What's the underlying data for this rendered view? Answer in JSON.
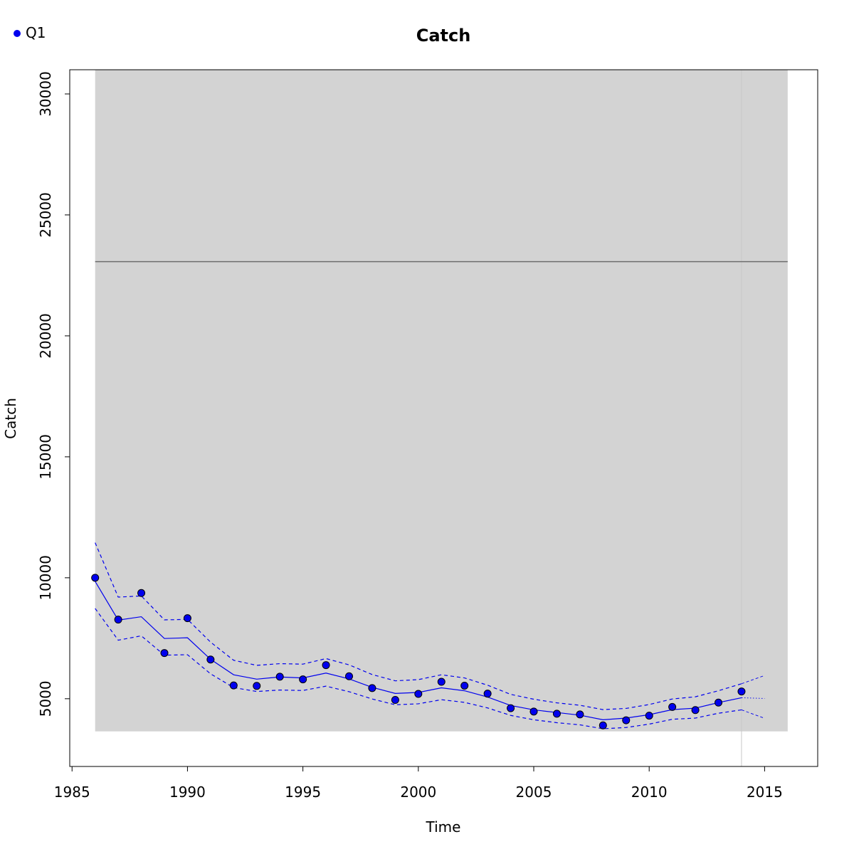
{
  "chart_data": {
    "type": "line",
    "title": "Catch",
    "xlabel": "Time",
    "ylabel": "Catch",
    "xlim": [
      1984.9,
      2017.3
    ],
    "ylim": [
      2200,
      31000
    ],
    "x_ticks": [
      1985,
      1990,
      1995,
      2000,
      2005,
      2010,
      2015
    ],
    "y_ticks": [
      5000,
      10000,
      15000,
      20000,
      25000,
      30000
    ],
    "shaded_region": {
      "x": [
        1986,
        2016
      ],
      "y": [
        3650,
        31000
      ],
      "color": "#d3d3d3"
    },
    "reference_line": {
      "y": 23070,
      "x": [
        1986,
        2016
      ],
      "color": "#6e6e6e"
    },
    "vertical_line": {
      "x": 2014,
      "color": "#c8c8c8"
    },
    "legend": {
      "position": "top-left",
      "entries": [
        {
          "label": "Q1",
          "color": "#0000ee"
        }
      ]
    },
    "colors": {
      "series": "#0000ee",
      "point_fill": "#0000ee",
      "point_stroke": "#000000"
    },
    "series": [
      {
        "name": "Q1",
        "style": "points",
        "x": [
          1986,
          1987,
          1988,
          1989,
          1990,
          1991,
          1992,
          1993,
          1994,
          1995,
          1996,
          1997,
          1998,
          1999,
          2000,
          2001,
          2002,
          2003,
          2004,
          2005,
          2006,
          2007,
          2008,
          2009,
          2010,
          2011,
          2012,
          2013,
          2014
        ],
        "y": [
          10000,
          8270,
          9370,
          6890,
          8330,
          6620,
          5550,
          5530,
          5910,
          5800,
          6390,
          5930,
          5440,
          4950,
          5200,
          5700,
          5540,
          5210,
          4610,
          4470,
          4380,
          4350,
          3900,
          4110,
          4300,
          4660,
          4530,
          4840,
          5300
        ]
      },
      {
        "style": "line",
        "x": [
          1986,
          1987,
          1988,
          1989,
          1990,
          1991,
          1992,
          1993,
          1994,
          1995,
          1996,
          1997,
          1998,
          1999,
          2000,
          2001,
          2002,
          2003,
          2004,
          2005,
          2006,
          2007,
          2008,
          2009,
          2010,
          2011,
          2012,
          2013,
          2014
        ],
        "y": [
          9850,
          8250,
          8390,
          7490,
          7520,
          6630,
          5990,
          5810,
          5900,
          5860,
          6060,
          5820,
          5470,
          5220,
          5260,
          5450,
          5330,
          5070,
          4720,
          4540,
          4430,
          4320,
          4130,
          4200,
          4340,
          4550,
          4610,
          4840,
          5040
        ]
      },
      {
        "style": "dashed",
        "x": [
          1986,
          1987,
          1988,
          1989,
          1990,
          1991,
          1992,
          1993,
          1994,
          1995,
          1996,
          1997,
          1998,
          1999,
          2000,
          2001,
          2002,
          2003,
          2004,
          2005,
          2006,
          2007,
          2008,
          2009,
          2010,
          2011,
          2012,
          2013,
          2014
        ],
        "y": [
          11450,
          9200,
          9250,
          8260,
          8280,
          7340,
          6590,
          6380,
          6450,
          6430,
          6660,
          6400,
          6000,
          5740,
          5790,
          5990,
          5860,
          5560,
          5180,
          4980,
          4830,
          4730,
          4550,
          4600,
          4760,
          4990,
          5080,
          5330,
          5620
        ]
      },
      {
        "style": "dashed",
        "x": [
          1986,
          1987,
          1988,
          1989,
          1990,
          1991,
          1992,
          1993,
          1994,
          1995,
          1996,
          1997,
          1998,
          1999,
          2000,
          2001,
          2002,
          2003,
          2004,
          2005,
          2006,
          2007,
          2008,
          2009,
          2010,
          2011,
          2012,
          2013,
          2014
        ],
        "y": [
          8730,
          7420,
          7600,
          6800,
          6820,
          6030,
          5460,
          5300,
          5360,
          5340,
          5520,
          5290,
          4990,
          4750,
          4790,
          4960,
          4850,
          4620,
          4310,
          4130,
          4010,
          3920,
          3760,
          3810,
          3950,
          4150,
          4200,
          4400,
          4540
        ]
      },
      {
        "style": "dotted",
        "x": [
          2014,
          2015
        ],
        "y": [
          5040,
          5010
        ]
      },
      {
        "style": "dashed-thin",
        "x": [
          2014,
          2015
        ],
        "y": [
          5620,
          5960
        ]
      },
      {
        "style": "dashed-thin",
        "x": [
          2014,
          2015
        ],
        "y": [
          4540,
          4190
        ]
      }
    ]
  }
}
